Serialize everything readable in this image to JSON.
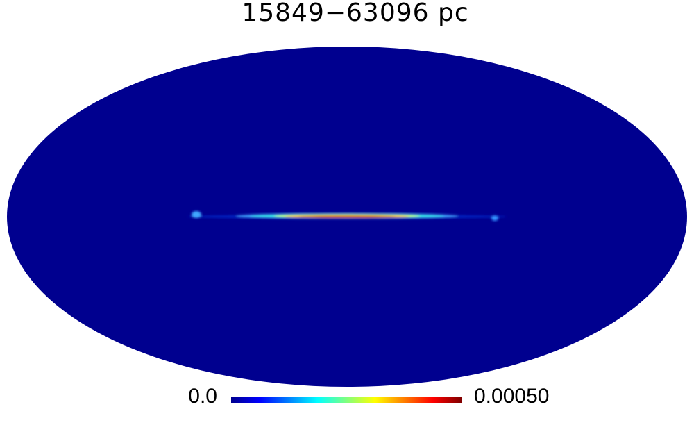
{
  "title": "15849−63096 pc",
  "colorbar": {
    "min_label": "0.0",
    "max_label": "0.00050"
  }
}
